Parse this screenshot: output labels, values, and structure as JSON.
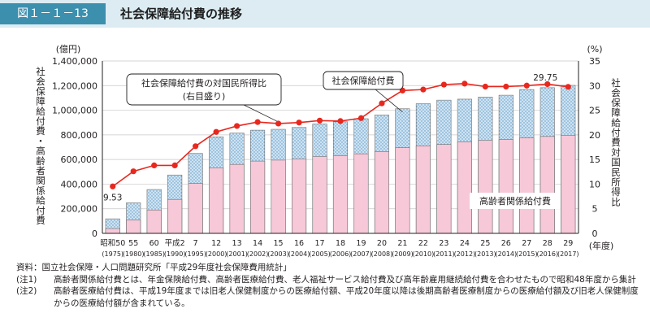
{
  "figure": {
    "number": "図１－１－13",
    "title": "社会保障給付費の推移"
  },
  "notes": {
    "source": "資料：国立社会保障・人口問題研究所「平成29年度社会保障費用統計」",
    "note1_tag": "(注1)",
    "note1_text": "高齢者関係給付費とは、年金保険給付費、高齢者医療給付費、老人福祉サービス給付費及び高年齢雇用継続給付費を合わせたもので昭和48年度から集計",
    "note2_tag": "(注2)",
    "note2_text": "高齢者医療給付費は、平成19年度までは旧老人保健制度からの医療給付額、平成20年度以降は後期高齢者医療制度からの医療給付額及び旧老人保健制度からの医療給付額が含まれている。"
  },
  "chart_data": {
    "type": "bar",
    "categories": [
      "昭和50",
      "55",
      "60",
      "平成2",
      "7",
      "12",
      "13",
      "14",
      "15",
      "16",
      "17",
      "18",
      "19",
      "20",
      "21",
      "22",
      "23",
      "24",
      "25",
      "26",
      "27",
      "28",
      "29"
    ],
    "categories_sub": [
      "(1975)",
      "(1980)",
      "(1985)",
      "(1990)",
      "(1995)",
      "(2000)",
      "(2001)",
      "(2002)",
      "(2003)",
      "(2004)",
      "(2005)",
      "(2006)",
      "(2007)",
      "(2008)",
      "(2009)",
      "(2010)",
      "(2011)",
      "(2012)",
      "(2013)",
      "(2014)",
      "(2015)",
      "(2016)",
      "(2017)"
    ],
    "xlabel": "(年度)",
    "left_axis": {
      "unit": "(億円)",
      "label": "社会保障給付費・高齢者関係給付費",
      "ylim": [
        0,
        1400000
      ],
      "ticks": [
        "0",
        "200,000",
        "400,000",
        "600,000",
        "800,000",
        "1,000,000",
        "1,200,000",
        "1,400,000"
      ],
      "tick_values": [
        0,
        200000,
        400000,
        600000,
        800000,
        1000000,
        1200000,
        1400000
      ]
    },
    "right_axis": {
      "unit": "(%)",
      "label": "社会保障給付費対国民所得比",
      "ylim": [
        0,
        35
      ],
      "ticks": [
        "0",
        "5",
        "10",
        "15",
        "20",
        "25",
        "30",
        "35"
      ],
      "tick_values": [
        0,
        5,
        10,
        15,
        20,
        25,
        30,
        35
      ]
    },
    "series": [
      {
        "name": "社会保障給付費",
        "type": "bar",
        "axis": "left",
        "color": "#cde3f2",
        "values": [
          118000,
          248000,
          356000,
          474000,
          649000,
          784000,
          814000,
          838000,
          845000,
          860000,
          888000,
          906000,
          931000,
          961000,
          1012000,
          1053000,
          1082000,
          1090000,
          1107000,
          1122000,
          1168000,
          1183000,
          1202000
        ]
      },
      {
        "name": "高齢者関係給付費",
        "type": "bar",
        "axis": "left",
        "color": "#f6c8d8",
        "values": [
          39000,
          108000,
          190000,
          276000,
          406000,
          531000,
          560000,
          587000,
          595000,
          605000,
          624000,
          632000,
          646000,
          663000,
          696000,
          711000,
          722000,
          742000,
          755000,
          763000,
          776000,
          787000,
          797000
        ]
      },
      {
        "name": "社会保障給付費の対国民所得比",
        "type": "line",
        "axis": "right",
        "color": "#e8281f",
        "values": [
          9.53,
          12.6,
          13.8,
          13.8,
          17.7,
          20.6,
          21.8,
          22.6,
          22.3,
          22.5,
          22.9,
          22.8,
          23.4,
          26.4,
          29.0,
          29.2,
          30.2,
          30.4,
          29.8,
          29.8,
          30.0,
          30.3,
          29.75
        ]
      }
    ],
    "annotations": {
      "first_value": "9.53",
      "last_value": "29.75",
      "callout_ratio_line1": "社会保障給付費の対国民所得比",
      "callout_ratio_line2": "(右目盛り)",
      "callout_total": "社会保障給付費",
      "label_elderly": "高齢者関係給付費"
    },
    "grid": true,
    "legend": "callouts"
  }
}
